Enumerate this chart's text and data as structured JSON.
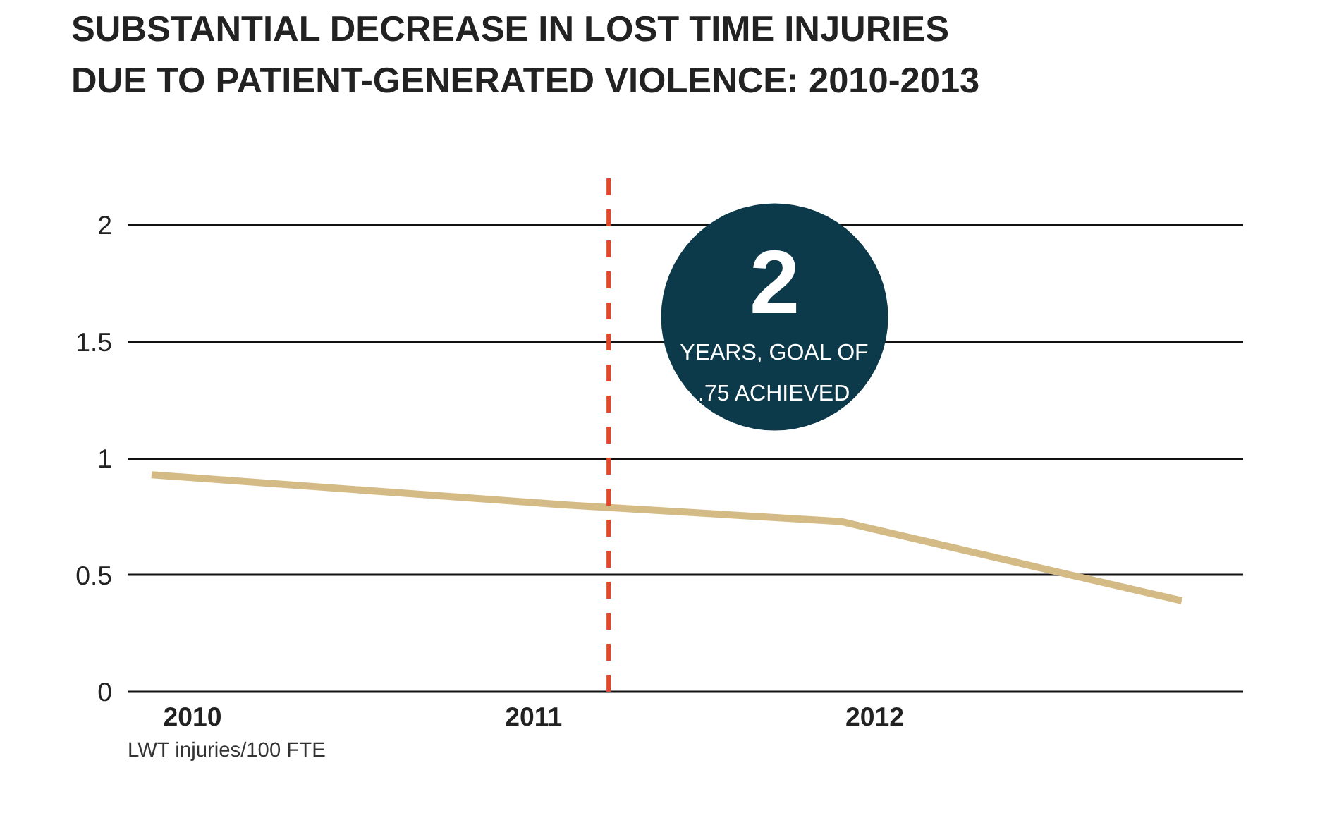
{
  "chart_data": {
    "type": "line",
    "title": "SUBSTANTIAL DECREASE IN LOST TIME INJURIES DUE TO PATIENT-GENERATED VIOLENCE: 2010-2013",
    "x": [
      2009.88,
      2011.1,
      2011.9,
      2012.9
    ],
    "series": [
      {
        "color": "#d4bb85",
        "values": [
          0.93,
          0.8,
          0.73,
          0.39
        ]
      }
    ],
    "xlim": [
      2009.81,
      2013.08
    ],
    "xticks": [
      2010,
      2011,
      2012
    ],
    "ylim": [
      0,
      2.2
    ],
    "yticks": [
      0,
      0.5,
      1,
      1.5,
      2
    ],
    "grid": "y",
    "marker": "none",
    "line_style": "solid",
    "ref_lines": [
      {
        "axis": "x",
        "value": 2011.22,
        "color": "#e2472b",
        "line_style": "dashed"
      }
    ],
    "annotations": [
      "2",
      "YEARS, GOAL OF .75 ACHIEVED",
      "LWT injuries/100 FTE"
    ]
  }
}
